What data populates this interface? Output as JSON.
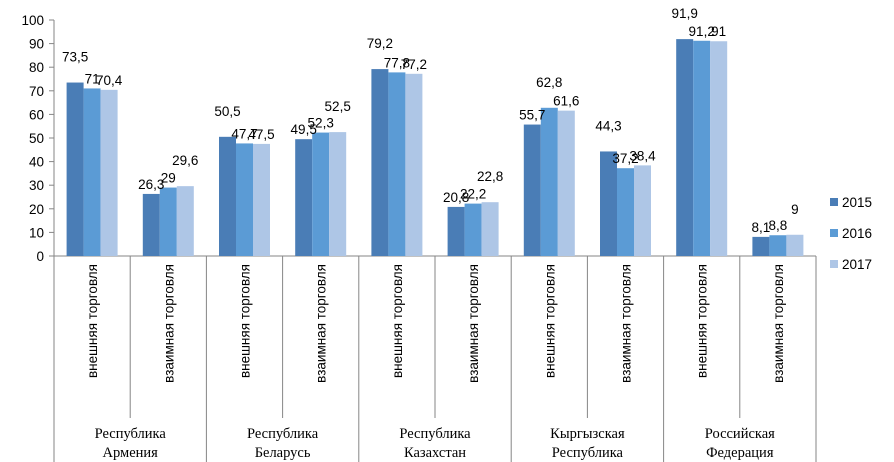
{
  "chart_data": {
    "type": "bar",
    "ylim": [
      0,
      100
    ],
    "yticks": [
      0,
      10,
      20,
      30,
      40,
      50,
      60,
      70,
      80,
      90,
      100
    ],
    "grid": false,
    "legend_position": "right",
    "groups": [
      "Республика Армения",
      "Республика Беларусь",
      "Республика Казахстан",
      "Кыргызская Республика",
      "Российская Федерация"
    ],
    "categories": [
      "внешняя торговля",
      "взаимная торговля",
      "внешняя торговля",
      "взаимная торговля",
      "внешняя торговля",
      "взаимная торговля",
      "внешняя торговля",
      "взаимная торговля",
      "внешняя торговля",
      "взаимная торговля"
    ],
    "series": [
      {
        "name": "2015",
        "color": "#4a7db6",
        "values": [
          73.5,
          26.3,
          50.5,
          49.5,
          79.2,
          20.8,
          55.7,
          44.3,
          91.9,
          8.1
        ],
        "labels": [
          "73,5",
          "26,3",
          "50,5",
          "49,5",
          "79,2",
          "20,8",
          "55,7",
          "44,3",
          "91,9",
          "8,1"
        ]
      },
      {
        "name": "2016",
        "color": "#5b9bd5",
        "values": [
          71,
          29,
          47.7,
          52.3,
          77.8,
          22.2,
          62.8,
          37.2,
          91.2,
          8.8
        ],
        "labels": [
          "71",
          "29",
          "47,7",
          "52,3",
          "77,8",
          "22,2",
          "62,8",
          "37,2",
          "91,2",
          "8,8"
        ]
      },
      {
        "name": "2017",
        "color": "#aec6e6",
        "values": [
          70.4,
          29.6,
          47.5,
          52.5,
          77.2,
          22.8,
          61.6,
          38.4,
          91,
          9
        ],
        "labels": [
          "70,4",
          "29,6",
          "47,5",
          "52,5",
          "77,2",
          "22,8",
          "61,6",
          "38,4",
          "91",
          "9"
        ]
      }
    ]
  }
}
